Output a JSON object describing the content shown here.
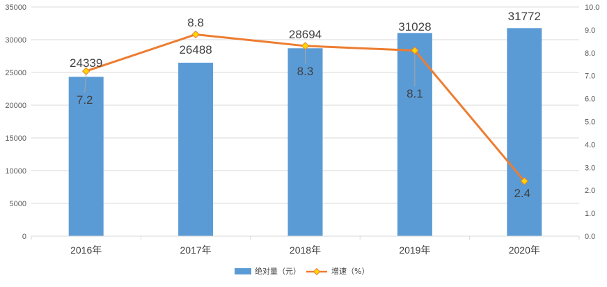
{
  "chart_data": {
    "type": "bar+line",
    "categories": [
      "2016年",
      "2017年",
      "2018年",
      "2019年",
      "2020年"
    ],
    "series": [
      {
        "name": "绝对量（元）",
        "type": "bar",
        "axis": "left",
        "values": [
          24339,
          26488,
          28694,
          31028,
          31772
        ],
        "color": "#5b9bd5"
      },
      {
        "name": "增速（%）",
        "type": "line",
        "axis": "right",
        "values": [
          7.2,
          8.8,
          8.3,
          8.1,
          2.4
        ],
        "color": "#ed7d31",
        "marker_color": "#ffd700"
      }
    ],
    "left_axis": {
      "min": 0,
      "max": 35000,
      "step": 5000,
      "ticks": [
        "0",
        "5000",
        "10000",
        "15000",
        "20000",
        "25000",
        "30000",
        "35000"
      ]
    },
    "right_axis": {
      "min": 0,
      "max": 10,
      "step": 1,
      "ticks": [
        "0.0",
        "1.0",
        "2.0",
        "3.0",
        "4.0",
        "5.0",
        "6.0",
        "7.0",
        "8.0",
        "9.0",
        "10.0"
      ]
    },
    "bar_labels": [
      "24339",
      "26488",
      "28694",
      "31028",
      "31772"
    ],
    "line_labels": [
      "7.2",
      "8.8",
      "8.3",
      "8.1",
      "2.4"
    ],
    "grid": true,
    "legend_position": "bottom"
  }
}
